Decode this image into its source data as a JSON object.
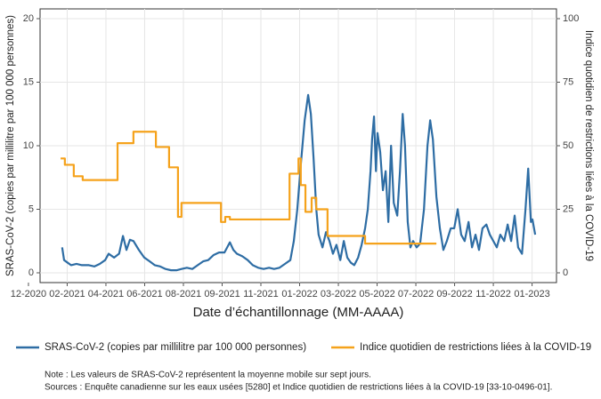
{
  "chart_data": {
    "type": "line",
    "xlabel": "Date d’échantillonnage (MM-AAAA)",
    "ylabel": "SRAS-CoV-2 (copies par millilitre par 100 000 personnes)",
    "y2label": "Indice quotidien de restrictions liées à la COVID-19",
    "note": "Note : Les valeurs de SRAS-CoV-2 représentent la moyenne mobile sur sept jours.",
    "sources": "Sources : Enquête canadienne sur les eaux usées [5280] et Indice quotidien de restrictions liées à la COVID-19 [33-10-0496-01].",
    "xlim": [
      0.3,
      13.63
    ],
    "xticks": [
      {
        "value": 0,
        "label": "12-2020"
      },
      {
        "value": 1,
        "label": "02-2021"
      },
      {
        "value": 2,
        "label": "04-2021"
      },
      {
        "value": 3,
        "label": "06-2021"
      },
      {
        "value": 4,
        "label": "08-2021"
      },
      {
        "value": 5,
        "label": "09-2021"
      },
      {
        "value": 6,
        "label": "11-2021"
      },
      {
        "value": 7,
        "label": "01-2022"
      },
      {
        "value": 8,
        "label": "03-2022"
      },
      {
        "value": 9,
        "label": "05-2022"
      },
      {
        "value": 10,
        "label": "07-2022"
      },
      {
        "value": 11,
        "label": "09-2022"
      },
      {
        "value": 12,
        "label": "11-2022"
      },
      {
        "value": 13,
        "label": "01-2023"
      }
    ],
    "ylim": [
      -0.77,
      20.77
    ],
    "yticks": [
      0,
      5,
      10,
      15,
      20
    ],
    "y2lim": [
      -3.85,
      103.85
    ],
    "y2ticks": [
      0,
      25,
      50,
      75,
      100
    ],
    "grid": true,
    "legend": "bottom",
    "series": [
      {
        "name": "SRAS-CoV-2 (copies par millilitre par 100 000 personnes)",
        "color": "#2e6da4",
        "x": [
          0.87,
          0.92,
          1.01,
          1.1,
          1.24,
          1.38,
          1.56,
          1.7,
          1.84,
          1.98,
          2.07,
          2.21,
          2.34,
          2.44,
          2.53,
          2.62,
          2.71,
          2.85,
          2.99,
          3.13,
          3.26,
          3.4,
          3.54,
          3.68,
          3.82,
          3.95,
          4.09,
          4.23,
          4.37,
          4.51,
          4.64,
          4.78,
          4.92,
          5.06,
          5.2,
          5.29,
          5.38,
          5.52,
          5.66,
          5.79,
          5.93,
          6.07,
          6.21,
          6.34,
          6.48,
          6.62,
          6.76,
          6.85,
          6.94,
          7.03,
          7.13,
          7.22,
          7.29,
          7.36,
          7.43,
          7.49,
          7.59,
          7.68,
          7.77,
          7.86,
          7.95,
          8.05,
          8.14,
          8.23,
          8.32,
          8.41,
          8.51,
          8.6,
          8.69,
          8.76,
          8.83,
          8.87,
          8.92,
          8.97,
          9.01,
          9.08,
          9.15,
          9.22,
          9.29,
          9.36,
          9.43,
          9.52,
          9.59,
          9.66,
          9.72,
          9.79,
          9.86,
          9.93,
          10.02,
          10.11,
          10.21,
          10.3,
          10.37,
          10.44,
          10.53,
          10.62,
          10.71,
          10.8,
          10.9,
          10.99,
          11.08,
          11.17,
          11.26,
          11.36,
          11.45,
          11.54,
          11.63,
          11.72,
          11.82,
          11.91,
          12.0,
          12.09,
          12.18,
          12.28,
          12.37,
          12.46,
          12.55,
          12.64,
          12.74,
          12.83,
          12.9,
          12.97,
          13.01,
          13.08
        ],
        "values": [
          2.0,
          1.0,
          0.8,
          0.6,
          0.7,
          0.6,
          0.6,
          0.5,
          0.7,
          1.0,
          1.5,
          1.2,
          1.5,
          2.9,
          1.8,
          2.6,
          2.5,
          1.8,
          1.2,
          0.9,
          0.6,
          0.5,
          0.3,
          0.2,
          0.2,
          0.3,
          0.4,
          0.3,
          0.6,
          0.9,
          1.0,
          1.4,
          1.6,
          1.6,
          2.4,
          1.8,
          1.5,
          1.3,
          1.0,
          0.6,
          0.4,
          0.3,
          0.4,
          0.3,
          0.4,
          0.7,
          1.0,
          2.5,
          5.0,
          8.5,
          12.0,
          14.0,
          12.5,
          9.0,
          5.0,
          3.0,
          2.0,
          3.2,
          2.5,
          1.5,
          2.2,
          1.0,
          2.5,
          1.2,
          0.8,
          0.6,
          1.2,
          2.2,
          3.5,
          5.0,
          8.0,
          10.5,
          12.3,
          8.0,
          11.0,
          9.5,
          6.5,
          8.0,
          4.0,
          10.0,
          5.5,
          4.5,
          8.0,
          12.5,
          10.0,
          4.0,
          2.0,
          2.5,
          2.0,
          2.3,
          5.0,
          10.0,
          12.0,
          10.5,
          6.0,
          3.5,
          1.8,
          2.5,
          3.5,
          3.5,
          5.0,
          3.0,
          2.5,
          4.0,
          2.0,
          3.0,
          1.8,
          3.5,
          3.8,
          3.0,
          2.5,
          2.0,
          3.0,
          2.5,
          3.8,
          2.5,
          4.5,
          2.0,
          1.5,
          5.0,
          8.2,
          4.0,
          4.2,
          3.0
        ]
      },
      {
        "name": "Indice quotidien de restrictions liées à la COVID-19",
        "color": "#f5a21b",
        "axis": "y2",
        "x": [
          0.83,
          0.94,
          0.94,
          1.17,
          1.17,
          1.4,
          1.4,
          2.3,
          2.3,
          2.71,
          2.71,
          3.29,
          3.29,
          3.63,
          3.63,
          3.86,
          3.86,
          3.95,
          3.95,
          4.97,
          4.97,
          5.08,
          5.08,
          5.2,
          5.2,
          6.74,
          6.74,
          6.97,
          6.97,
          7.03,
          7.03,
          7.15,
          7.15,
          7.31,
          7.31,
          7.43,
          7.43,
          7.72,
          7.72,
          8.69,
          8.69,
          10.53
        ],
        "values": [
          45,
          45,
          42.5,
          42.5,
          38,
          38,
          36.5,
          36.5,
          51,
          51,
          55.5,
          55.5,
          49.5,
          49.5,
          41.5,
          41.5,
          22,
          22,
          27.5,
          27.5,
          20,
          20,
          22,
          22,
          21,
          21,
          39,
          39,
          45,
          45,
          34.5,
          34.5,
          24,
          24,
          29.5,
          29.5,
          25,
          25,
          14.5,
          14.5,
          11.5,
          11.5
        ]
      }
    ]
  }
}
